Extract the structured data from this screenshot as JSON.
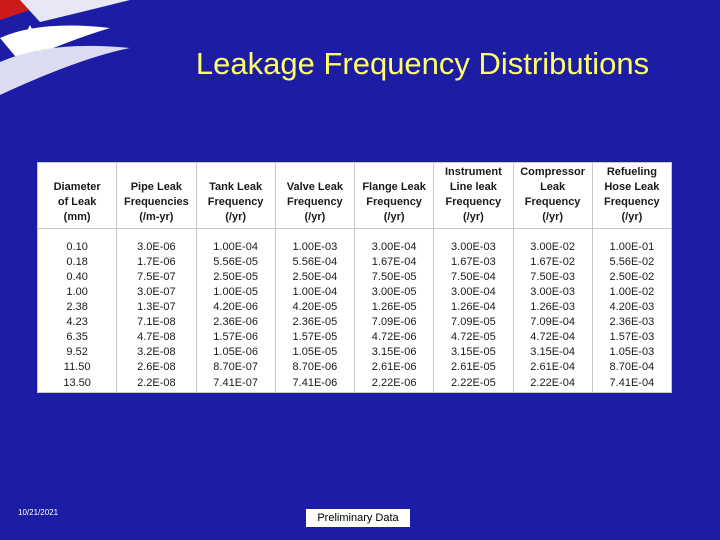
{
  "title": "Leakage Frequency Distributions",
  "table": {
    "header": [
      [
        "Diameter",
        "of Leak",
        "(mm)"
      ],
      [
        "Pipe Leak",
        "Frequencies",
        "(/m-yr)"
      ],
      [
        "Tank Leak",
        "Frequency",
        "(/yr)"
      ],
      [
        "Valve Leak",
        "Frequency",
        "(/yr)"
      ],
      [
        "Flange Leak",
        "Frequency",
        "(/yr)"
      ],
      [
        "Instrument",
        "Line leak",
        "Frequency",
        "(/yr)"
      ],
      [
        "Compressor",
        "Leak",
        "Frequency",
        "(/yr)"
      ],
      [
        "Refueling",
        "Hose Leak",
        "Frequency",
        "(/yr)"
      ]
    ],
    "rows": [
      [
        "0.10",
        "3.0E-06",
        "1.00E-04",
        "1.00E-03",
        "3.00E-04",
        "3.00E-03",
        "3.00E-02",
        "1.00E-01"
      ],
      [
        "0.18",
        "1.7E-06",
        "5.56E-05",
        "5.56E-04",
        "1.67E-04",
        "1.67E-03",
        "1.67E-02",
        "5.56E-02"
      ],
      [
        "0.40",
        "7.5E-07",
        "2.50E-05",
        "2.50E-04",
        "7.50E-05",
        "7.50E-04",
        "7.50E-03",
        "2.50E-02"
      ],
      [
        "1.00",
        "3.0E-07",
        "1.00E-05",
        "1.00E-04",
        "3.00E-05",
        "3.00E-04",
        "3.00E-03",
        "1.00E-02"
      ],
      [
        "2.38",
        "1.3E-07",
        "4.20E-06",
        "4.20E-05",
        "1.26E-05",
        "1.26E-04",
        "1.26E-03",
        "4.20E-03"
      ],
      [
        "4.23",
        "7.1E-08",
        "2.36E-06",
        "2.36E-05",
        "7.09E-06",
        "7.09E-05",
        "7.09E-04",
        "2.36E-03"
      ],
      [
        "6.35",
        "4.7E-08",
        "1.57E-06",
        "1.57E-05",
        "4.72E-06",
        "4.72E-05",
        "4.72E-04",
        "1.57E-03"
      ],
      [
        "9.52",
        "3.2E-08",
        "1.05E-06",
        "1.05E-05",
        "3.15E-06",
        "3.15E-05",
        "3.15E-04",
        "1.05E-03"
      ],
      [
        "11.50",
        "2.6E-08",
        "8.70E-07",
        "8.70E-06",
        "2.61E-06",
        "2.61E-05",
        "2.61E-04",
        "8.70E-04"
      ],
      [
        "13.50",
        "2.2E-08",
        "7.41E-07",
        "7.41E-06",
        "2.22E-06",
        "2.22E-05",
        "2.22E-04",
        "7.41E-04"
      ]
    ]
  },
  "footer": {
    "date": "10/21/2021",
    "note": "Preliminary Data"
  }
}
